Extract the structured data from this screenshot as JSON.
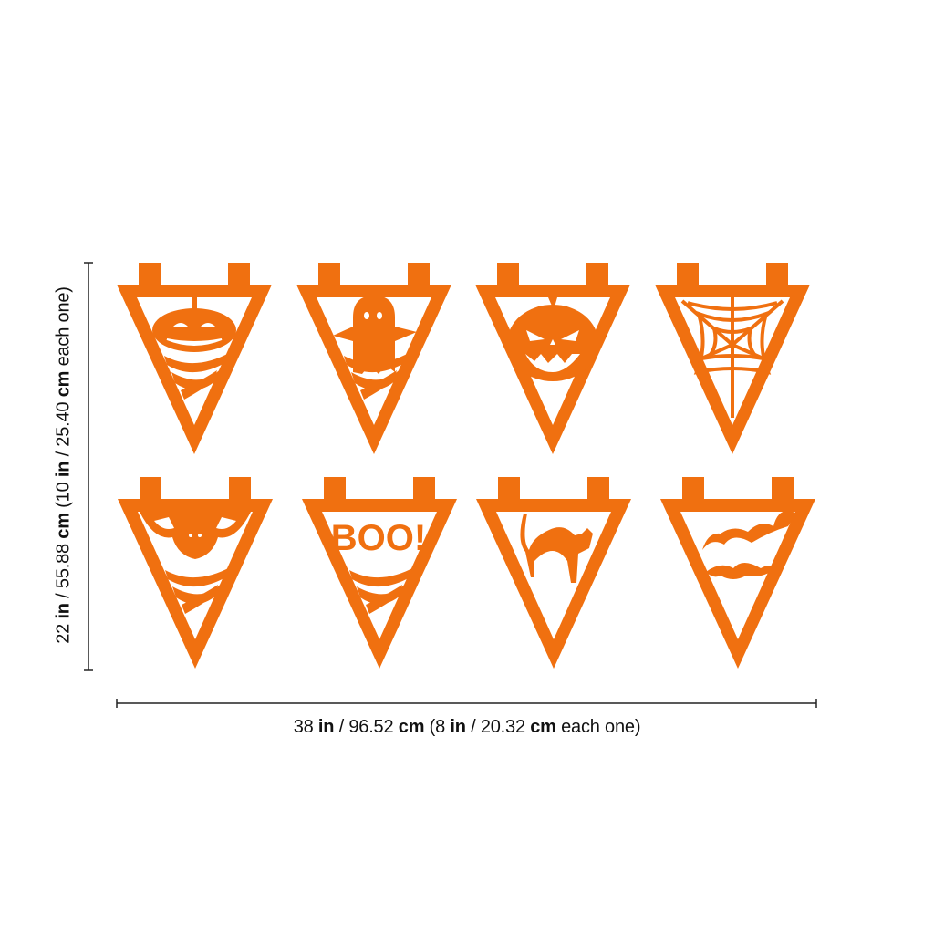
{
  "colors": {
    "pennant": "#F07010",
    "dimension_line": "#222222",
    "background": "#FFFFFF"
  },
  "pennants": [
    {
      "motif": "pumpkin"
    },
    {
      "motif": "ghost"
    },
    {
      "motif": "jack-o-lantern"
    },
    {
      "motif": "spider-web"
    },
    {
      "motif": "bat"
    },
    {
      "motif": "boo-text",
      "text": "BOO!"
    },
    {
      "motif": "black-cat"
    },
    {
      "motif": "flying-bats"
    }
  ],
  "dimensions": {
    "height": {
      "p1": "22 ",
      "u1": "in",
      "p2": " / 55.88 ",
      "u2": "cm",
      "p3": " (10 ",
      "u3": "in",
      "p4": " / 25.40 ",
      "u4": "cm",
      "p5": " each one)"
    },
    "width": {
      "p1": "38 ",
      "u1": "in",
      "p2": " / 96.52 ",
      "u2": "cm",
      "p3": " (8 ",
      "u3": "in",
      "p4": " / 20.32 ",
      "u4": "cm",
      "p5": " each one)"
    }
  }
}
